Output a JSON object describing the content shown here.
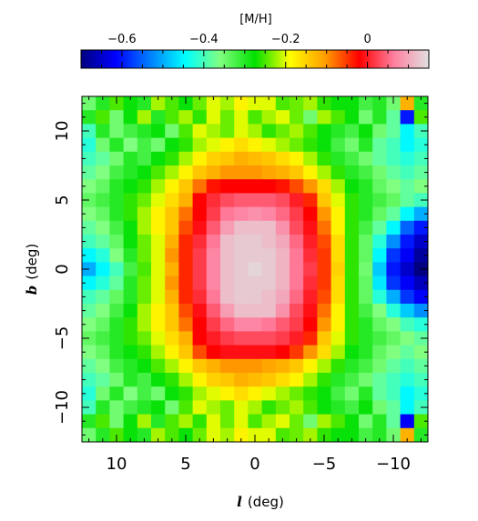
{
  "chart_data": {
    "type": "heatmap",
    "colorbar": {
      "label": "[M/H]",
      "range": [
        -0.7,
        0.15
      ],
      "tick_values": [
        -0.6,
        -0.4,
        -0.2,
        0
      ],
      "tick_labels": [
        "−0.6",
        "−0.4",
        "−0.2",
        "0"
      ],
      "colormap": [
        "#000080",
        "#0000ff",
        "#0080ff",
        "#00ffff",
        "#80ff80",
        "#00e000",
        "#ffff00",
        "#ffa000",
        "#ff0000",
        "#ff80a0",
        "#e0e0e0"
      ]
    },
    "xlabel_symbol": "l",
    "xlabel_unit": "(deg)",
    "ylabel_symbol": "b",
    "ylabel_unit": "(deg)",
    "xlim": [
      12.5,
      -12.5
    ],
    "ylim": [
      -12.5,
      12.5
    ],
    "x_ticks": [
      10,
      5,
      0,
      -5,
      -10
    ],
    "x_tick_labels": [
      "10",
      "5",
      "0",
      "−5",
      "−10"
    ],
    "y_ticks": [
      -10,
      -5,
      0,
      5,
      10
    ],
    "y_tick_labels": [
      "−10",
      "−5",
      "0",
      "5",
      "10"
    ],
    "grid": {
      "nx": 25,
      "ny": 25,
      "x_center_first": 12,
      "x_step": -1,
      "y_center_first": 12,
      "y_step": -1
    },
    "values": [
      [
        -0.35,
        -0.3,
        -0.25,
        -0.28,
        -0.3,
        -0.22,
        -0.25,
        -0.28,
        -0.24,
        -0.2,
        -0.22,
        -0.18,
        -0.2,
        -0.2,
        -0.25,
        -0.24,
        -0.22,
        -0.26,
        -0.28,
        -0.28,
        -0.32,
        -0.3,
        -0.35,
        -0.12,
        -0.3
      ],
      [
        -0.3,
        -0.25,
        -0.35,
        -0.28,
        -0.22,
        -0.3,
        -0.25,
        -0.22,
        -0.26,
        -0.2,
        -0.24,
        -0.2,
        -0.25,
        -0.22,
        -0.2,
        -0.24,
        -0.35,
        -0.22,
        -0.25,
        -0.28,
        -0.35,
        -0.3,
        -0.38,
        -0.6,
        -0.25
      ],
      [
        -0.4,
        -0.3,
        -0.35,
        -0.32,
        -0.3,
        -0.28,
        -0.35,
        -0.25,
        -0.2,
        -0.22,
        -0.24,
        -0.2,
        -0.22,
        -0.26,
        -0.24,
        -0.22,
        -0.25,
        -0.28,
        -0.3,
        -0.32,
        -0.28,
        -0.35,
        -0.38,
        -0.45,
        -0.4
      ],
      [
        -0.42,
        -0.35,
        -0.3,
        -0.36,
        -0.32,
        -0.35,
        -0.28,
        -0.26,
        -0.22,
        -0.2,
        -0.18,
        -0.16,
        -0.18,
        -0.2,
        -0.22,
        -0.24,
        -0.26,
        -0.28,
        -0.32,
        -0.35,
        -0.3,
        -0.38,
        -0.4,
        -0.45,
        -0.42
      ],
      [
        -0.4,
        -0.38,
        -0.35,
        -0.3,
        -0.32,
        -0.28,
        -0.26,
        -0.22,
        -0.18,
        -0.15,
        -0.14,
        -0.12,
        -0.13,
        -0.14,
        -0.16,
        -0.18,
        -0.22,
        -0.26,
        -0.3,
        -0.32,
        -0.35,
        -0.38,
        -0.4,
        -0.42,
        -0.4
      ],
      [
        -0.38,
        -0.36,
        -0.32,
        -0.3,
        -0.28,
        -0.25,
        -0.22,
        -0.18,
        -0.14,
        -0.12,
        -0.1,
        -0.1,
        -0.1,
        -0.11,
        -0.12,
        -0.14,
        -0.18,
        -0.22,
        -0.26,
        -0.3,
        -0.32,
        -0.35,
        -0.38,
        -0.4,
        -0.38
      ],
      [
        -0.36,
        -0.34,
        -0.3,
        -0.28,
        -0.26,
        -0.22,
        -0.18,
        -0.14,
        -0.08,
        -0.03,
        -0.02,
        -0.02,
        -0.02,
        -0.02,
        -0.03,
        -0.06,
        -0.1,
        -0.16,
        -0.22,
        -0.28,
        -0.3,
        -0.34,
        -0.36,
        -0.38,
        -0.36
      ],
      [
        -0.34,
        -0.32,
        -0.3,
        -0.26,
        -0.24,
        -0.2,
        -0.16,
        -0.12,
        -0.02,
        0.01,
        0.03,
        0.04,
        0.04,
        0.04,
        0.03,
        0.0,
        -0.04,
        -0.14,
        -0.2,
        -0.26,
        -0.3,
        -0.32,
        -0.34,
        -0.38,
        -0.4
      ],
      [
        -0.36,
        -0.34,
        -0.3,
        -0.26,
        -0.22,
        -0.18,
        -0.14,
        -0.08,
        -0.02,
        0.02,
        0.06,
        0.07,
        0.08,
        0.07,
        0.05,
        0.02,
        -0.02,
        -0.1,
        -0.18,
        -0.26,
        -0.3,
        -0.34,
        -0.38,
        -0.45,
        -0.5
      ],
      [
        -0.38,
        -0.36,
        -0.32,
        -0.28,
        -0.22,
        -0.18,
        -0.14,
        -0.06,
        -0.01,
        0.04,
        0.09,
        0.12,
        0.12,
        0.12,
        0.08,
        0.03,
        -0.01,
        -0.08,
        -0.18,
        -0.26,
        -0.32,
        -0.38,
        -0.45,
        -0.55,
        -0.6
      ],
      [
        -0.4,
        -0.38,
        -0.34,
        -0.28,
        -0.24,
        -0.2,
        -0.12,
        -0.04,
        0.01,
        0.06,
        0.12,
        0.13,
        0.13,
        0.12,
        0.1,
        0.05,
        0.0,
        -0.06,
        -0.16,
        -0.26,
        -0.34,
        -0.42,
        -0.52,
        -0.6,
        -0.65
      ],
      [
        -0.45,
        -0.42,
        -0.36,
        -0.3,
        -0.24,
        -0.2,
        -0.1,
        -0.04,
        0.02,
        0.07,
        0.12,
        0.13,
        0.13,
        0.13,
        0.11,
        0.06,
        0.01,
        -0.05,
        -0.16,
        -0.26,
        -0.34,
        -0.45,
        -0.58,
        -0.62,
        -0.68
      ],
      [
        -0.5,
        -0.45,
        -0.4,
        -0.32,
        -0.25,
        -0.2,
        -0.12,
        -0.04,
        0.02,
        0.07,
        0.12,
        0.13,
        0.14,
        0.13,
        0.11,
        0.06,
        0.02,
        -0.05,
        -0.15,
        -0.26,
        -0.35,
        -0.48,
        -0.6,
        -0.65,
        -0.7
      ],
      [
        -0.45,
        -0.42,
        -0.38,
        -0.3,
        -0.24,
        -0.2,
        -0.1,
        -0.04,
        0.02,
        0.07,
        0.12,
        0.13,
        0.13,
        0.13,
        0.11,
        0.06,
        0.01,
        -0.05,
        -0.16,
        -0.26,
        -0.34,
        -0.46,
        -0.58,
        -0.62,
        -0.66
      ],
      [
        -0.4,
        -0.38,
        -0.34,
        -0.3,
        -0.24,
        -0.2,
        -0.12,
        -0.04,
        0.01,
        0.06,
        0.12,
        0.13,
        0.13,
        0.12,
        0.1,
        0.05,
        0.0,
        -0.06,
        -0.16,
        -0.26,
        -0.34,
        -0.42,
        -0.5,
        -0.58,
        -0.62
      ],
      [
        -0.38,
        -0.36,
        -0.32,
        -0.28,
        -0.22,
        -0.18,
        -0.14,
        -0.06,
        -0.01,
        0.04,
        0.09,
        0.12,
        0.12,
        0.12,
        0.08,
        0.03,
        -0.01,
        -0.08,
        -0.18,
        -0.26,
        -0.32,
        -0.36,
        -0.42,
        -0.48,
        -0.52
      ],
      [
        -0.36,
        -0.34,
        -0.3,
        -0.26,
        -0.22,
        -0.18,
        -0.14,
        -0.08,
        -0.02,
        0.02,
        0.05,
        0.07,
        0.07,
        0.06,
        0.04,
        0.02,
        -0.02,
        -0.1,
        -0.18,
        -0.26,
        -0.3,
        -0.34,
        -0.36,
        -0.4,
        -0.42
      ],
      [
        -0.34,
        -0.32,
        -0.3,
        -0.26,
        -0.24,
        -0.2,
        -0.16,
        -0.12,
        -0.02,
        0.0,
        0.02,
        0.03,
        0.03,
        0.03,
        0.02,
        0.0,
        -0.04,
        -0.14,
        -0.2,
        -0.26,
        -0.3,
        -0.32,
        -0.34,
        -0.36,
        -0.38
      ],
      [
        -0.36,
        -0.34,
        -0.3,
        -0.28,
        -0.26,
        -0.22,
        -0.18,
        -0.14,
        -0.06,
        -0.02,
        -0.01,
        -0.01,
        -0.01,
        -0.01,
        -0.02,
        -0.05,
        -0.1,
        -0.16,
        -0.22,
        -0.28,
        -0.3,
        -0.34,
        -0.36,
        -0.38,
        -0.36
      ],
      [
        -0.38,
        -0.36,
        -0.32,
        -0.3,
        -0.28,
        -0.25,
        -0.22,
        -0.18,
        -0.14,
        -0.12,
        -0.1,
        -0.1,
        -0.1,
        -0.11,
        -0.12,
        -0.14,
        -0.18,
        -0.22,
        -0.26,
        -0.3,
        -0.32,
        -0.35,
        -0.38,
        -0.4,
        -0.38
      ],
      [
        -0.4,
        -0.38,
        -0.35,
        -0.3,
        -0.32,
        -0.28,
        -0.26,
        -0.22,
        -0.18,
        -0.15,
        -0.14,
        -0.12,
        -0.13,
        -0.14,
        -0.16,
        -0.18,
        -0.22,
        -0.26,
        -0.3,
        -0.32,
        -0.35,
        -0.38,
        -0.4,
        -0.42,
        -0.4
      ],
      [
        -0.42,
        -0.35,
        -0.3,
        -0.36,
        -0.32,
        -0.35,
        -0.28,
        -0.26,
        -0.22,
        -0.2,
        -0.18,
        -0.16,
        -0.18,
        -0.2,
        -0.22,
        -0.24,
        -0.26,
        -0.28,
        -0.32,
        -0.35,
        -0.3,
        -0.38,
        -0.4,
        -0.45,
        -0.42
      ],
      [
        -0.4,
        -0.3,
        -0.35,
        -0.32,
        -0.3,
        -0.28,
        -0.35,
        -0.25,
        -0.2,
        -0.22,
        -0.24,
        -0.2,
        -0.22,
        -0.26,
        -0.24,
        -0.22,
        -0.25,
        -0.28,
        -0.3,
        -0.32,
        -0.28,
        -0.35,
        -0.38,
        -0.45,
        -0.4
      ],
      [
        -0.3,
        -0.25,
        -0.35,
        -0.28,
        -0.22,
        -0.3,
        -0.25,
        -0.22,
        -0.26,
        -0.2,
        -0.24,
        -0.2,
        -0.25,
        -0.22,
        -0.2,
        -0.24,
        -0.35,
        -0.22,
        -0.25,
        -0.28,
        -0.35,
        -0.3,
        -0.38,
        -0.62,
        -0.25
      ],
      [
        -0.35,
        -0.3,
        -0.25,
        -0.28,
        -0.3,
        -0.22,
        -0.25,
        -0.28,
        -0.24,
        -0.2,
        -0.22,
        -0.18,
        -0.2,
        -0.2,
        -0.25,
        -0.24,
        -0.22,
        -0.26,
        -0.28,
        -0.28,
        -0.32,
        -0.3,
        -0.35,
        -0.12,
        -0.3
      ]
    ]
  }
}
